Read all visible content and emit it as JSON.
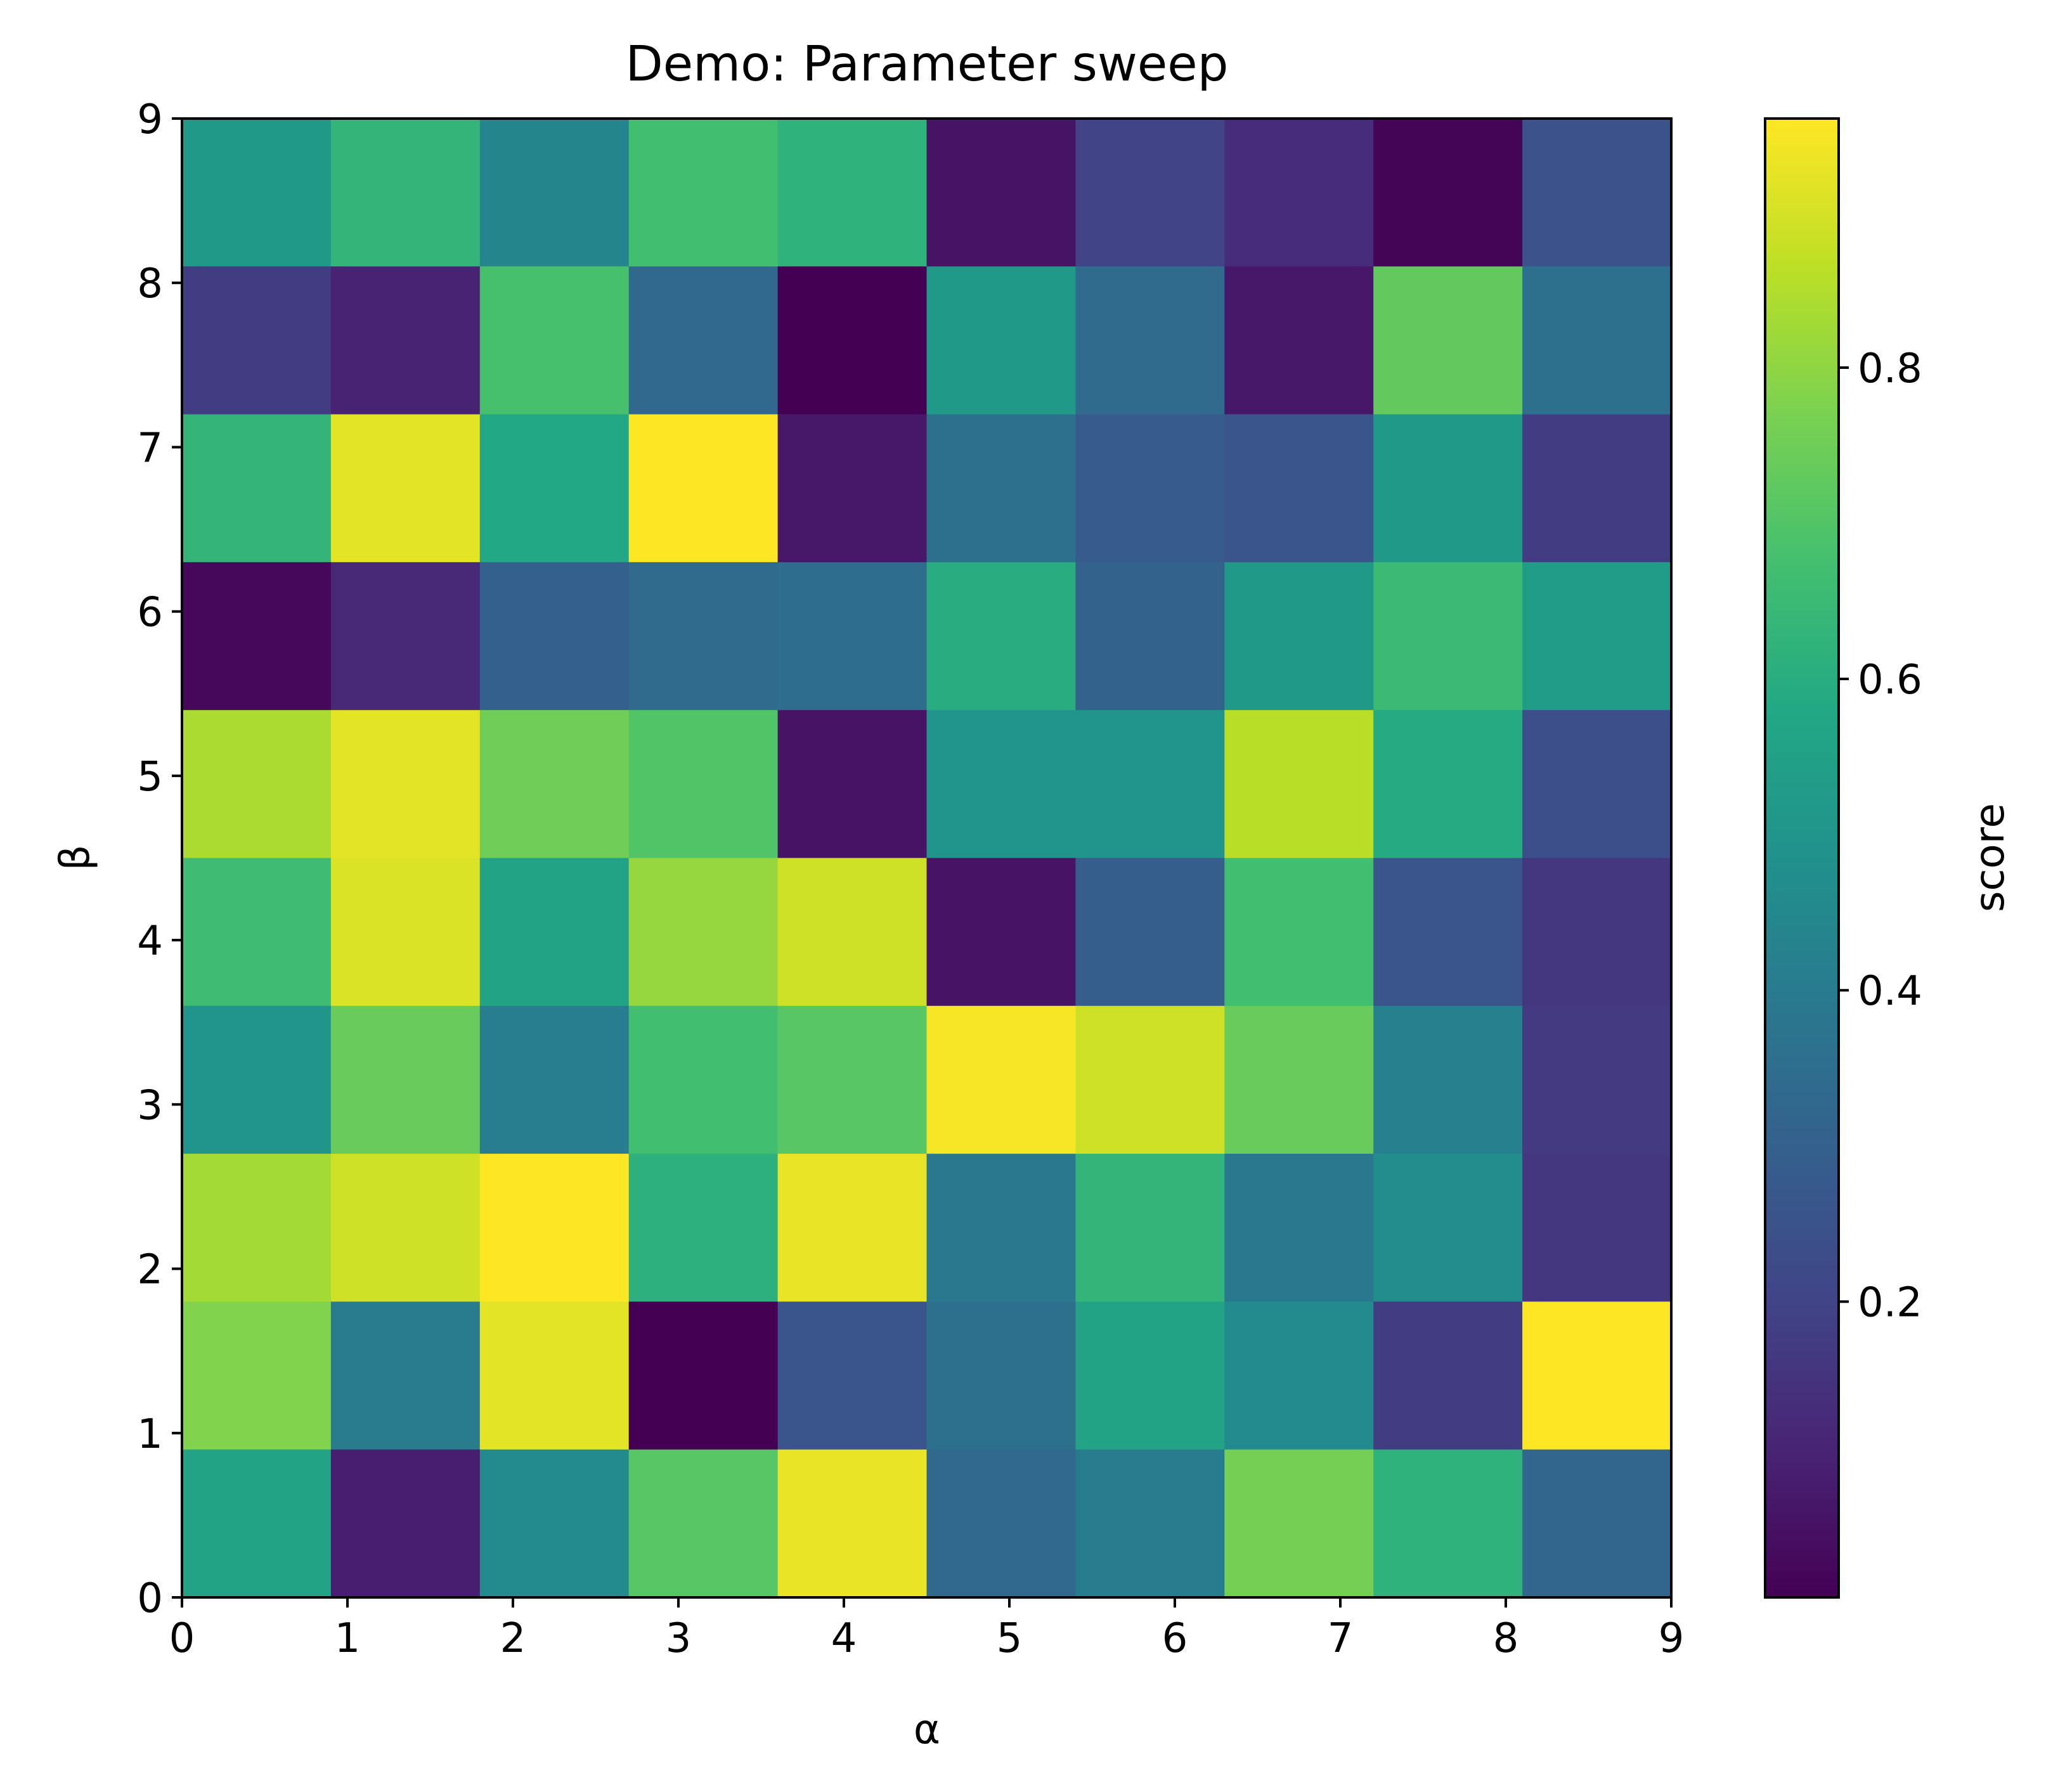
{
  "chart_data": {
    "type": "heatmap",
    "title": "Demo: Parameter sweep",
    "xlabel": "α",
    "ylabel": "β",
    "colorbar_label": "score",
    "colormap": "viridis",
    "xlim": [
      0,
      9
    ],
    "ylim": [
      0,
      9
    ],
    "x_ticks": [
      "0",
      "1",
      "2",
      "3",
      "4",
      "5",
      "6",
      "7",
      "8",
      "9"
    ],
    "y_ticks": [
      "0",
      "1",
      "2",
      "3",
      "4",
      "5",
      "6",
      "7",
      "8",
      "9"
    ],
    "colorbar_range": [
      0.01,
      0.96
    ],
    "colorbar_ticks": [
      "0.2",
      "0.4",
      "0.6",
      "0.8"
    ],
    "colorbar_tick_values": [
      0.2,
      0.4,
      0.6,
      0.8
    ],
    "grid": false,
    "rows_top_to_bottom": [
      [
        0.52,
        0.63,
        0.44,
        0.67,
        0.62,
        0.06,
        0.2,
        0.13,
        0.02,
        0.25
      ],
      [
        0.18,
        0.1,
        0.68,
        0.33,
        0.01,
        0.52,
        0.34,
        0.07,
        0.73,
        0.36
      ],
      [
        0.63,
        0.92,
        0.58,
        0.96,
        0.07,
        0.36,
        0.28,
        0.26,
        0.52,
        0.18
      ],
      [
        0.03,
        0.12,
        0.3,
        0.34,
        0.35,
        0.6,
        0.31,
        0.52,
        0.65,
        0.53
      ],
      [
        0.84,
        0.92,
        0.75,
        0.7,
        0.06,
        0.5,
        0.5,
        0.86,
        0.59,
        0.24
      ],
      [
        0.66,
        0.91,
        0.56,
        0.81,
        0.89,
        0.06,
        0.29,
        0.67,
        0.26,
        0.16
      ],
      [
        0.5,
        0.74,
        0.41,
        0.67,
        0.71,
        0.95,
        0.89,
        0.74,
        0.42,
        0.17
      ],
      [
        0.83,
        0.89,
        0.96,
        0.61,
        0.93,
        0.39,
        0.63,
        0.39,
        0.47,
        0.16
      ],
      [
        0.78,
        0.4,
        0.92,
        0.01,
        0.26,
        0.36,
        0.56,
        0.46,
        0.18,
        0.96
      ],
      [
        0.56,
        0.09,
        0.46,
        0.71,
        0.93,
        0.33,
        0.4,
        0.76,
        0.62,
        0.32
      ]
    ]
  }
}
